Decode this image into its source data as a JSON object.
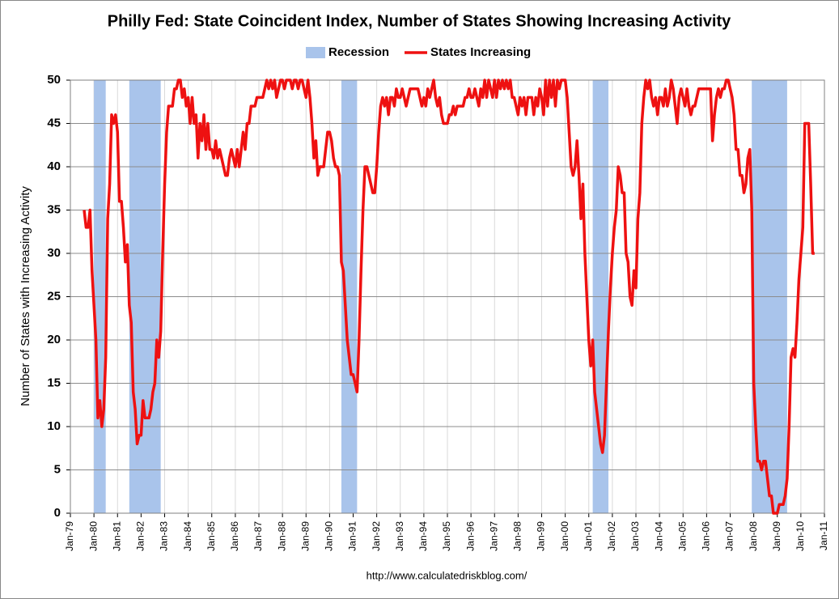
{
  "chart_data": {
    "type": "line",
    "title": "Philly Fed: State Coincident Index, Number of States Showing Increasing Activity",
    "y_label": "Number of States with Increasing Activity",
    "source": "http://www.calculatedriskblog.com/",
    "recessions": {
      "name": "Recession",
      "color": "#a9c4eb",
      "periods": [
        [
          "1980-01",
          "1980-07"
        ],
        [
          "1981-07",
          "1982-11"
        ],
        [
          "1990-07",
          "1991-03"
        ],
        [
          "2001-03",
          "2001-11"
        ],
        [
          "2007-12",
          "2009-06"
        ]
      ]
    },
    "x": [
      "1979-08",
      "1979-09",
      "1979-10",
      "1979-11",
      "1979-12",
      "1980-01",
      "1980-02",
      "1980-03",
      "1980-04",
      "1980-05",
      "1980-06",
      "1980-07",
      "1980-08",
      "1980-09",
      "1980-10",
      "1980-11",
      "1980-12",
      "1981-01",
      "1981-02",
      "1981-03",
      "1981-04",
      "1981-05",
      "1981-06",
      "1981-07",
      "1981-08",
      "1981-09",
      "1981-10",
      "1981-11",
      "1981-12",
      "1982-01",
      "1982-02",
      "1982-03",
      "1982-04",
      "1982-05",
      "1982-06",
      "1982-07",
      "1982-08",
      "1982-09",
      "1982-10",
      "1982-11",
      "1982-12",
      "1983-01",
      "1983-02",
      "1983-03",
      "1983-04",
      "1983-05",
      "1983-06",
      "1983-07",
      "1983-08",
      "1983-09",
      "1983-10",
      "1983-11",
      "1983-12",
      "1984-01",
      "1984-02",
      "1984-03",
      "1984-04",
      "1984-05",
      "1984-06",
      "1984-07",
      "1984-08",
      "1984-09",
      "1984-10",
      "1984-11",
      "1984-12",
      "1985-01",
      "1985-02",
      "1985-03",
      "1985-04",
      "1985-05",
      "1985-06",
      "1985-07",
      "1985-08",
      "1985-09",
      "1985-10",
      "1985-11",
      "1985-12",
      "1986-01",
      "1986-02",
      "1986-03",
      "1986-04",
      "1986-05",
      "1986-06",
      "1986-07",
      "1986-08",
      "1986-09",
      "1986-10",
      "1986-11",
      "1986-12",
      "1987-01",
      "1987-02",
      "1987-03",
      "1987-04",
      "1987-05",
      "1987-06",
      "1987-07",
      "1987-08",
      "1987-09",
      "1987-10",
      "1987-11",
      "1987-12",
      "1988-01",
      "1988-02",
      "1988-03",
      "1988-04",
      "1988-05",
      "1988-06",
      "1988-07",
      "1988-08",
      "1988-09",
      "1988-10",
      "1988-11",
      "1988-12",
      "1989-01",
      "1989-02",
      "1989-03",
      "1989-04",
      "1989-05",
      "1989-06",
      "1989-07",
      "1989-08",
      "1989-09",
      "1989-10",
      "1989-11",
      "1989-12",
      "1990-01",
      "1990-02",
      "1990-03",
      "1990-04",
      "1990-05",
      "1990-06",
      "1990-07",
      "1990-08",
      "1990-09",
      "1990-10",
      "1990-11",
      "1990-12",
      "1991-01",
      "1991-02",
      "1991-03",
      "1991-04",
      "1991-05",
      "1991-06",
      "1991-07",
      "1991-08",
      "1991-09",
      "1991-10",
      "1991-11",
      "1991-12",
      "1992-01",
      "1992-02",
      "1992-03",
      "1992-04",
      "1992-05",
      "1992-06",
      "1992-07",
      "1992-08",
      "1992-09",
      "1992-10",
      "1992-11",
      "1992-12",
      "1993-01",
      "1993-02",
      "1993-03",
      "1993-04",
      "1993-05",
      "1993-06",
      "1993-07",
      "1993-08",
      "1993-09",
      "1993-10",
      "1993-11",
      "1993-12",
      "1994-01",
      "1994-02",
      "1994-03",
      "1994-04",
      "1994-05",
      "1994-06",
      "1994-07",
      "1994-08",
      "1994-09",
      "1994-10",
      "1994-11",
      "1994-12",
      "1995-01",
      "1995-02",
      "1995-03",
      "1995-04",
      "1995-05",
      "1995-06",
      "1995-07",
      "1995-08",
      "1995-09",
      "1995-10",
      "1995-11",
      "1995-12",
      "1996-01",
      "1996-02",
      "1996-03",
      "1996-04",
      "1996-05",
      "1996-06",
      "1996-07",
      "1996-08",
      "1996-09",
      "1996-10",
      "1996-11",
      "1996-12",
      "1997-01",
      "1997-02",
      "1997-03",
      "1997-04",
      "1997-05",
      "1997-06",
      "1997-07",
      "1997-08",
      "1997-09",
      "1997-10",
      "1997-11",
      "1997-12",
      "1998-01",
      "1998-02",
      "1998-03",
      "1998-04",
      "1998-05",
      "1998-06",
      "1998-07",
      "1998-08",
      "1998-09",
      "1998-10",
      "1998-11",
      "1998-12",
      "1999-01",
      "1999-02",
      "1999-03",
      "1999-04",
      "1999-05",
      "1999-06",
      "1999-07",
      "1999-08",
      "1999-09",
      "1999-10",
      "1999-11",
      "1999-12",
      "2000-01",
      "2000-02",
      "2000-03",
      "2000-04",
      "2000-05",
      "2000-06",
      "2000-07",
      "2000-08",
      "2000-09",
      "2000-10",
      "2000-11",
      "2000-12",
      "2001-01",
      "2001-02",
      "2001-03",
      "2001-04",
      "2001-05",
      "2001-06",
      "2001-07",
      "2001-08",
      "2001-09",
      "2001-10",
      "2001-11",
      "2001-12",
      "2002-01",
      "2002-02",
      "2002-03",
      "2002-04",
      "2002-05",
      "2002-06",
      "2002-07",
      "2002-08",
      "2002-09",
      "2002-10",
      "2002-11",
      "2002-12",
      "2003-01",
      "2003-02",
      "2003-03",
      "2003-04",
      "2003-05",
      "2003-06",
      "2003-07",
      "2003-08",
      "2003-09",
      "2003-10",
      "2003-11",
      "2003-12",
      "2004-01",
      "2004-02",
      "2004-03",
      "2004-04",
      "2004-05",
      "2004-06",
      "2004-07",
      "2004-08",
      "2004-09",
      "2004-10",
      "2004-11",
      "2004-12",
      "2005-01",
      "2005-02",
      "2005-03",
      "2005-04",
      "2005-05",
      "2005-06",
      "2005-07",
      "2005-08",
      "2005-09",
      "2005-10",
      "2005-11",
      "2005-12",
      "2006-01",
      "2006-02",
      "2006-03",
      "2006-04",
      "2006-05",
      "2006-06",
      "2006-07",
      "2006-08",
      "2006-09",
      "2006-10",
      "2006-11",
      "2006-12",
      "2007-01",
      "2007-02",
      "2007-03",
      "2007-04",
      "2007-05",
      "2007-06",
      "2007-07",
      "2007-08",
      "2007-09",
      "2007-10",
      "2007-11",
      "2007-12",
      "2008-01",
      "2008-02",
      "2008-03",
      "2008-04",
      "2008-05",
      "2008-06",
      "2008-07",
      "2008-08",
      "2008-09",
      "2008-10",
      "2008-11",
      "2008-12",
      "2009-01",
      "2009-02",
      "2009-03",
      "2009-04",
      "2009-05",
      "2009-06",
      "2009-07",
      "2009-08",
      "2009-09",
      "2009-10",
      "2009-11",
      "2009-12",
      "2010-01",
      "2010-02",
      "2010-03",
      "2010-04",
      "2010-05",
      "2010-06",
      "2010-07",
      "2010-08"
    ],
    "series": [
      {
        "name": "States Increasing",
        "color": "#ee1111",
        "values": [
          35,
          33,
          33,
          35,
          28,
          24,
          20,
          11,
          13,
          10,
          12,
          18,
          34,
          38,
          46,
          45,
          46,
          44,
          36,
          36,
          33,
          29,
          31,
          24,
          22,
          14,
          12,
          8,
          9,
          9,
          13,
          11,
          11,
          11,
          12,
          14,
          15,
          20,
          18,
          21,
          30,
          38,
          44,
          47,
          47,
          47,
          49,
          49,
          50,
          50,
          48,
          49,
          47,
          48,
          45,
          48,
          45,
          46,
          41,
          45,
          43,
          46,
          42,
          45,
          42,
          42,
          41,
          43,
          41,
          42,
          41,
          40,
          39,
          39,
          41,
          42,
          41,
          40,
          42,
          40,
          42,
          44,
          42,
          45,
          45,
          47,
          47,
          47,
          48,
          48,
          48,
          48,
          49,
          50,
          49,
          50,
          49,
          50,
          48,
          49,
          50,
          50,
          49,
          50,
          50,
          50,
          49,
          50,
          50,
          49,
          50,
          50,
          49,
          48,
          50,
          48,
          45,
          41,
          43,
          39,
          40,
          40,
          40,
          42,
          44,
          44,
          43,
          41,
          40,
          40,
          39,
          29,
          28,
          24,
          20,
          18,
          16,
          16,
          15,
          14,
          20,
          28,
          35,
          40,
          40,
          39,
          38,
          37,
          37,
          40,
          44,
          47,
          48,
          47,
          48,
          46,
          48,
          48,
          47,
          49,
          48,
          48,
          49,
          48,
          47,
          48,
          49,
          49,
          49,
          49,
          49,
          48,
          47,
          48,
          47,
          49,
          48,
          49,
          50,
          48,
          47,
          48,
          46,
          45,
          45,
          45,
          46,
          46,
          47,
          46,
          47,
          47,
          47,
          47,
          48,
          48,
          49,
          48,
          48,
          49,
          48,
          47,
          49,
          48,
          50,
          48,
          50,
          49,
          48,
          50,
          48,
          50,
          49,
          50,
          49,
          50,
          49,
          50,
          48,
          48,
          47,
          46,
          48,
          47,
          48,
          46,
          48,
          48,
          48,
          46,
          48,
          47,
          49,
          48,
          46,
          50,
          47,
          50,
          48,
          50,
          47,
          50,
          49,
          50,
          50,
          50,
          48,
          44,
          40,
          39,
          40,
          43,
          39,
          34,
          38,
          30,
          25,
          20,
          17,
          20,
          14,
          12,
          10,
          8,
          7,
          9,
          15,
          21,
          26,
          30,
          33,
          35,
          40,
          39,
          37,
          37,
          30,
          29,
          25,
          24,
          28,
          26,
          34,
          37,
          45,
          48,
          50,
          49,
          50,
          48,
          47,
          48,
          46,
          48,
          48,
          47,
          49,
          47,
          48,
          50,
          49,
          47,
          45,
          48,
          49,
          48,
          47,
          49,
          47,
          46,
          47,
          47,
          48,
          49,
          49,
          49,
          49,
          49,
          49,
          49,
          43,
          46,
          48,
          49,
          48,
          49,
          49,
          50,
          50,
          49,
          48,
          46,
          42,
          42,
          39,
          39,
          37,
          38,
          41,
          42,
          35,
          15,
          10,
          6,
          6,
          5,
          6,
          6,
          4,
          2,
          2,
          0,
          0,
          0,
          1,
          1,
          1,
          2,
          4,
          10,
          18,
          19,
          18,
          22,
          27,
          30,
          33,
          45,
          45,
          45,
          38,
          30,
          30
        ]
      }
    ],
    "xlim": [
      "1979-01",
      "2011-01"
    ],
    "xticks": [
      {
        "value": "1979-01",
        "label": "Jan-79"
      },
      {
        "value": "1980-01",
        "label": "Jan-80"
      },
      {
        "value": "1981-01",
        "label": "Jan-81"
      },
      {
        "value": "1982-01",
        "label": "Jan-82"
      },
      {
        "value": "1983-01",
        "label": "Jan-83"
      },
      {
        "value": "1984-01",
        "label": "Jan-84"
      },
      {
        "value": "1985-01",
        "label": "Jan-85"
      },
      {
        "value": "1986-01",
        "label": "Jan-86"
      },
      {
        "value": "1987-01",
        "label": "Jan-87"
      },
      {
        "value": "1988-01",
        "label": "Jan-88"
      },
      {
        "value": "1989-01",
        "label": "Jan-89"
      },
      {
        "value": "1990-01",
        "label": "Jan-90"
      },
      {
        "value": "1991-01",
        "label": "Jan-91"
      },
      {
        "value": "1992-01",
        "label": "Jan-92"
      },
      {
        "value": "1993-01",
        "label": "Jan-93"
      },
      {
        "value": "1994-01",
        "label": "Jan-94"
      },
      {
        "value": "1995-01",
        "label": "Jan-95"
      },
      {
        "value": "1996-01",
        "label": "Jan-96"
      },
      {
        "value": "1997-01",
        "label": "Jan-97"
      },
      {
        "value": "1998-01",
        "label": "Jan-98"
      },
      {
        "value": "1999-01",
        "label": "Jan-99"
      },
      {
        "value": "2000-01",
        "label": "Jan-00"
      },
      {
        "value": "2001-01",
        "label": "Jan-01"
      },
      {
        "value": "2002-01",
        "label": "Jan-02"
      },
      {
        "value": "2003-01",
        "label": "Jan-03"
      },
      {
        "value": "2004-01",
        "label": "Jan-04"
      },
      {
        "value": "2005-01",
        "label": "Jan-05"
      },
      {
        "value": "2006-01",
        "label": "Jan-06"
      },
      {
        "value": "2007-01",
        "label": "Jan-07"
      },
      {
        "value": "2008-01",
        "label": "Jan-08"
      },
      {
        "value": "2009-01",
        "label": "Jan-09"
      },
      {
        "value": "2010-01",
        "label": "Jan-10"
      },
      {
        "value": "2011-01",
        "label": "Jan-11"
      }
    ],
    "ylim": [
      0,
      50
    ],
    "yticks": [
      0,
      5,
      10,
      15,
      20,
      25,
      30,
      35,
      40,
      45,
      50
    ],
    "grid": true
  }
}
